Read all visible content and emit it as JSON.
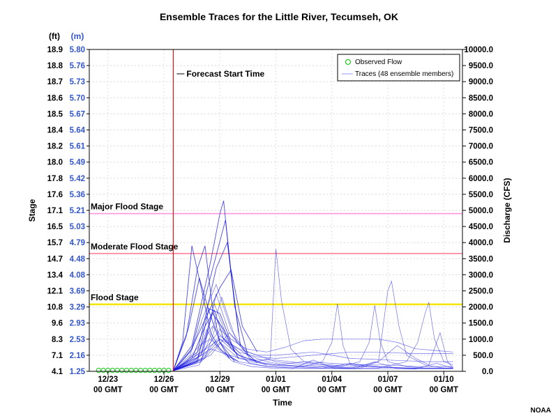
{
  "chart_data": {
    "type": "line",
    "title": "Ensemble Traces for the Little River, Tecumseh, OK",
    "xlabel": "Time",
    "ylabel_left": "Stage",
    "ylabel_right": "Discharge (CFS)",
    "unit_ft": "(ft)",
    "unit_m": "(m)",
    "credit": "NOAA",
    "x_tick_dates": [
      "12/23",
      "12/26",
      "12/29",
      "01/01",
      "01/04",
      "01/07",
      "01/10"
    ],
    "x_tick_time": "00 GMT",
    "x_range": [
      "12/22 00 GMT",
      "01/11 00 GMT"
    ],
    "ylim_discharge": [
      0,
      10000
    ],
    "right_ticks": [
      "10000.0",
      "9500.0",
      "9000.0",
      "8500.0",
      "8000.0",
      "7500.0",
      "7000.0",
      "6500.0",
      "6000.0",
      "5500.0",
      "5000.0",
      "4500.0",
      "4000.0",
      "3500.0",
      "3000.0",
      "2500.0",
      "2000.0",
      "1500.0",
      "1000.0",
      "500.0",
      "0.0"
    ],
    "left_ticks_ft": [
      "18.9",
      "18.8",
      "18.7",
      "18.6",
      "18.5",
      "18.4",
      "18.2",
      "18.0",
      "17.8",
      "17.6",
      "17.1",
      "16.5",
      "15.7",
      "14.7",
      "13.4",
      "12.1",
      "10.8",
      "9.6",
      "8.3",
      "7.1",
      "4.1"
    ],
    "left_ticks_m": [
      "5.80",
      "5.76",
      "5.73",
      "5.70",
      "5.67",
      "5.64",
      "5.61",
      "5.49",
      "5.42",
      "5.36",
      "5.21",
      "5.03",
      "4.79",
      "4.48",
      "4.08",
      "3.69",
      "3.29",
      "2.93",
      "2.53",
      "2.16",
      "1.25"
    ],
    "legend": {
      "position": "top-right",
      "observed_label": "Observed Flow",
      "traces_label": "Traces (48 ensemble members)"
    },
    "forecast_start": {
      "label": "Forecast Start Time",
      "x": "12/26 12 GMT",
      "x_day": 4.5
    },
    "stages": [
      {
        "label": "Major Flood Stage",
        "discharge": 4900,
        "color": "#ff9ce0"
      },
      {
        "label": "Moderate Flood Stage",
        "discharge": 3660,
        "color": "#ff8aa0"
      },
      {
        "label": "Flood Stage",
        "discharge": 2080,
        "color": "#f5e400"
      }
    ],
    "colors": {
      "observed": "#22cc22",
      "traces": "#1010dd",
      "forecast_line": "#dd1111",
      "axis_left_m": "#3355cc"
    },
    "observed": {
      "x_day": [
        0.5,
        0.75,
        1.0,
        1.25,
        1.5,
        1.75,
        2.0,
        2.25,
        2.5,
        2.75,
        3.0,
        3.25,
        3.5,
        3.75,
        4.0,
        4.25
      ],
      "discharge": [
        30,
        30,
        30,
        30,
        30,
        30,
        30,
        30,
        30,
        30,
        30,
        30,
        30,
        30,
        30,
        30
      ]
    },
    "series": [
      {
        "x_day": [
          4.5,
          5.0,
          5.5,
          6.0,
          6.5,
          7.0,
          7.5,
          8.0
        ],
        "discharge": [
          20,
          900,
          3900,
          2600,
          1200,
          700,
          450,
          300
        ]
      },
      {
        "x_day": [
          4.5,
          5.2,
          5.8,
          6.2,
          6.6,
          7.0,
          7.5
        ],
        "discharge": [
          20,
          1100,
          3200,
          3900,
          2000,
          900,
          400
        ]
      },
      {
        "x_day": [
          4.5,
          5.5,
          6.5,
          7.0,
          7.2,
          7.6,
          8.1
        ],
        "discharge": [
          20,
          800,
          3400,
          4900,
          5300,
          3000,
          800
        ]
      },
      {
        "x_day": [
          4.5,
          5.5,
          6.3,
          6.8,
          7.3,
          7.8,
          8.5
        ],
        "discharge": [
          20,
          700,
          2500,
          3600,
          4700,
          2000,
          500
        ]
      },
      {
        "x_day": [
          4.5,
          5.3,
          5.9,
          6.4,
          7.0,
          7.8
        ],
        "discharge": [
          20,
          1300,
          2900,
          1900,
          900,
          300
        ]
      },
      {
        "x_day": [
          4.5,
          5.8,
          6.8,
          7.4,
          8.0
        ],
        "discharge": [
          20,
          600,
          3200,
          4000,
          1200
        ]
      },
      {
        "x_day": [
          4.5,
          5.4,
          6.2,
          7.0,
          7.6,
          8.2,
          9.0
        ],
        "discharge": [
          20,
          600,
          1600,
          2600,
          3150,
          1400,
          600
        ]
      },
      {
        "x_day": [
          4.5,
          5.5,
          6.2,
          6.7,
          7.2,
          8.0,
          9.0
        ],
        "discharge": [
          20,
          400,
          1400,
          1900,
          1000,
          500,
          300
        ]
      },
      {
        "x_day": [
          4.5,
          5.8,
          6.4,
          7.0,
          7.8
        ],
        "discharge": [
          20,
          300,
          1950,
          1800,
          600
        ]
      },
      {
        "x_day": [
          4.5,
          6.0,
          6.6,
          7.2,
          8.0
        ],
        "discharge": [
          20,
          500,
          1800,
          1300,
          400
        ]
      },
      {
        "x_day": [
          4.5,
          5.6,
          6.5,
          7.0,
          7.6,
          8.4,
          9.5,
          10.5,
          11.5,
          12.5,
          14.0,
          15.5,
          16.5,
          17.5,
          18.5,
          19.5
        ],
        "discharge": [
          20,
          300,
          900,
          1300,
          1000,
          700,
          600,
          750,
          950,
          1000,
          1000,
          1000,
          900,
          700,
          650,
          600
        ]
      },
      {
        "x_day": [
          4.5,
          6.0,
          7.0,
          8.0,
          9.0,
          10.0,
          11.0,
          12.0,
          13.0,
          14.0,
          15.0,
          16.0,
          17.0,
          18.0,
          19.0,
          19.5
        ],
        "discharge": [
          20,
          600,
          1000,
          700,
          500,
          500,
          550,
          600,
          500,
          400,
          380,
          350,
          330,
          300,
          300,
          300
        ]
      },
      {
        "x_day": [
          4.5,
          5.5,
          6.5,
          7.5,
          8.5,
          10.0,
          11.5,
          13.0,
          14.5,
          16.0,
          17.5,
          19.5
        ],
        "discharge": [
          20,
          300,
          700,
          500,
          350,
          350,
          250,
          200,
          150,
          120,
          100,
          100
        ]
      },
      {
        "x_day": [
          4.5,
          6.0,
          6.8,
          7.5,
          8.5,
          9.5,
          10.5,
          11.5,
          12.5,
          13.0,
          13.3,
          13.6,
          14.0,
          15.0,
          16.0,
          17.0,
          18.0,
          19.0,
          19.5
        ],
        "discharge": [
          20,
          300,
          2400,
          1200,
          500,
          300,
          200,
          150,
          300,
          900,
          2100,
          800,
          200,
          150,
          120,
          100,
          100,
          100,
          100
        ]
      },
      {
        "x_day": [
          4.5,
          6.0,
          7.0,
          8.0,
          9.0,
          9.7,
          10.0,
          10.3,
          10.8,
          11.5,
          12.5,
          13.5,
          14.5,
          15.0,
          15.3,
          15.6,
          16.0,
          17.0,
          18.0,
          19.5
        ],
        "discharge": [
          20,
          400,
          1100,
          700,
          300,
          400,
          3800,
          2200,
          700,
          300,
          200,
          150,
          300,
          900,
          2050,
          900,
          300,
          150,
          100,
          100
        ]
      },
      {
        "x_day": [
          4.5,
          6.5,
          7.5,
          8.5,
          10.0,
          11.5,
          13.0,
          14.5,
          15.5,
          16.0,
          16.2,
          16.6,
          17.0,
          18.0,
          19.0,
          19.5
        ],
        "discharge": [
          20,
          500,
          1200,
          600,
          300,
          200,
          150,
          100,
          300,
          2500,
          2800,
          1400,
          500,
          200,
          100,
          100
        ]
      },
      {
        "x_day": [
          4.5,
          6.0,
          7.0,
          8.0,
          9.5,
          11.0,
          12.5,
          14.0,
          15.5,
          17.0,
          17.6,
          18.0,
          18.2,
          18.5,
          19.0,
          19.5
        ],
        "discharge": [
          20,
          350,
          1000,
          500,
          200,
          150,
          100,
          100,
          100,
          300,
          900,
          1800,
          2150,
          1000,
          300,
          200
        ]
      },
      {
        "x_day": [
          4.5,
          6.0,
          7.0,
          8.0,
          10.0,
          12.0,
          14.0,
          15.5,
          16.5,
          17.5,
          18.2,
          18.8,
          19.2,
          19.5
        ],
        "discharge": [
          20,
          300,
          900,
          400,
          200,
          150,
          100,
          300,
          800,
          400,
          200,
          1200,
          300,
          100
        ]
      },
      {
        "x_day": [
          4.5,
          5.6,
          6.6,
          7.4,
          8.0,
          9.0,
          10.0,
          11.0,
          12.0,
          13.0,
          14.0,
          15.0,
          16.0,
          17.0,
          18.0,
          19.0,
          19.5
        ],
        "discharge": [
          20,
          400,
          1400,
          900,
          600,
          450,
          400,
          450,
          500,
          550,
          600,
          600,
          580,
          560,
          550,
          550,
          550
        ]
      },
      {
        "x_day": [
          4.5,
          6.0,
          6.7,
          7.5,
          8.5,
          10.0,
          11.5,
          13.0,
          14.5,
          16.0,
          17.5,
          19.5
        ],
        "discharge": [
          20,
          600,
          2100,
          900,
          300,
          200,
          300,
          250,
          200,
          200,
          150,
          150
        ]
      },
      {
        "x_day": [
          4.5,
          5.4,
          6.1,
          6.8,
          7.6,
          8.6,
          9.5
        ],
        "discharge": [
          20,
          500,
          1700,
          2700,
          1300,
          400,
          200
        ]
      },
      {
        "x_day": [
          4.5,
          5.9,
          6.5,
          7.1,
          7.9,
          9.0
        ],
        "discharge": [
          20,
          200,
          1100,
          2300,
          900,
          250
        ]
      },
      {
        "x_day": [
          4.5,
          5.2,
          5.9,
          6.5,
          7.2,
          8.0,
          9.5,
          11.0,
          12.5,
          14.0,
          15.5,
          17.0,
          18.5,
          19.5
        ],
        "discharge": [
          20,
          300,
          800,
          1000,
          600,
          300,
          150,
          100,
          100,
          250,
          150,
          100,
          100,
          100
        ]
      },
      {
        "x_day": [
          4.5,
          5.7,
          6.3,
          6.9,
          7.7,
          8.7,
          9.8,
          10.9,
          12.0,
          13.1,
          14.2,
          15.3,
          16.4,
          17.5,
          18.6,
          19.5
        ],
        "discharge": [
          20,
          250,
          1300,
          700,
          300,
          150,
          100,
          80,
          350,
          100,
          80,
          300,
          100,
          80,
          250,
          100
        ]
      },
      {
        "x_day": [
          4.5,
          6.2,
          6.9,
          7.6,
          8.6,
          9.6,
          10.6,
          11.6,
          12.6,
          13.6,
          14.6,
          15.6,
          16.6,
          17.6,
          18.6,
          19.5
        ],
        "discharge": [
          20,
          400,
          1600,
          700,
          250,
          150,
          120,
          100,
          90,
          80,
          80,
          80,
          70,
          70,
          70,
          70
        ]
      }
    ]
  }
}
